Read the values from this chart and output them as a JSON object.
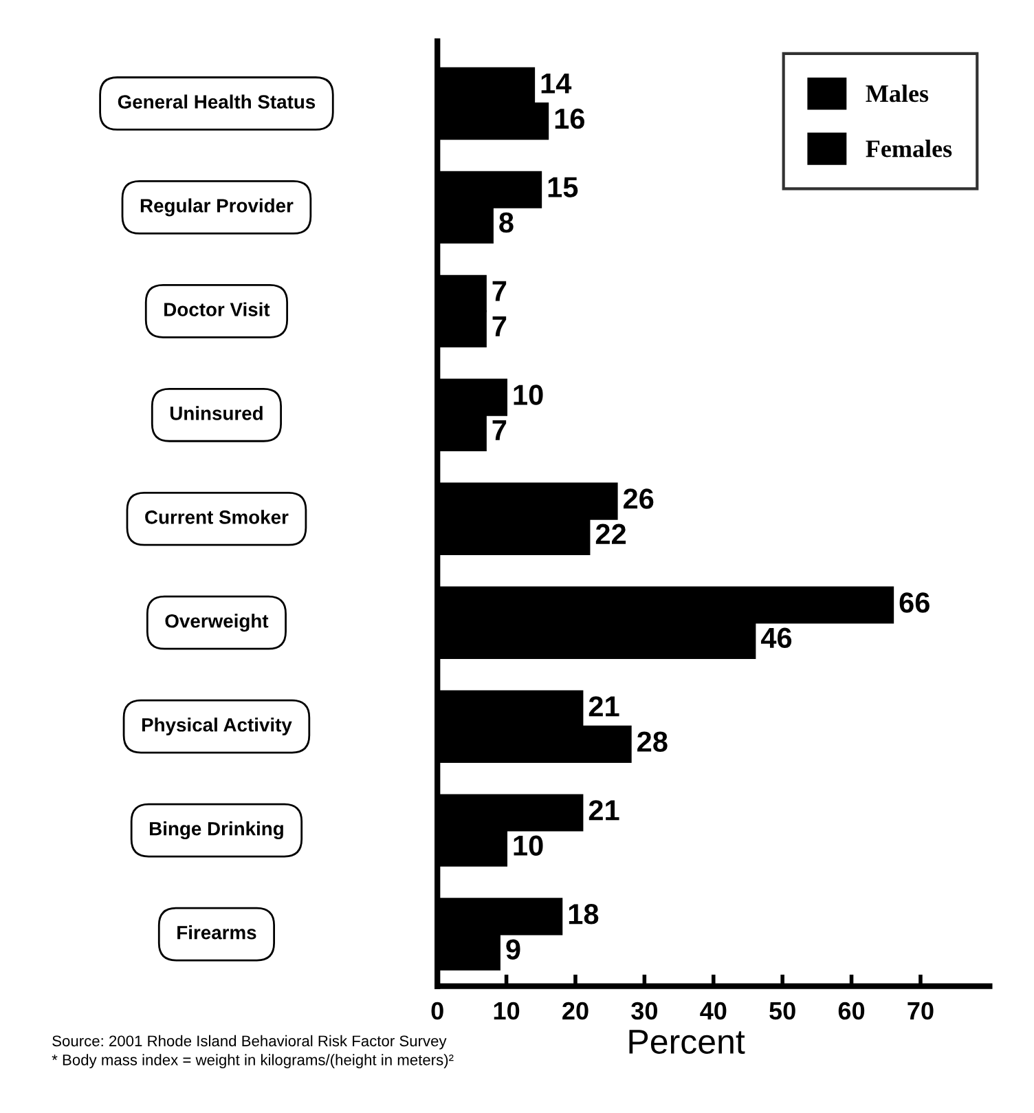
{
  "chart_data": {
    "type": "bar",
    "orientation": "horizontal",
    "categories": [
      "General Health Status",
      "Regular Provider",
      "Doctor Visit",
      "Uninsured",
      "Current Smoker",
      "Overweight",
      "Physical Activity",
      "Binge Drinking",
      "Firearms"
    ],
    "series": [
      {
        "name": "Males",
        "color": "#000000",
        "values": [
          14,
          15,
          7,
          10,
          26,
          66,
          21,
          21,
          18
        ]
      },
      {
        "name": "Females",
        "color": "#000000",
        "values": [
          16,
          8,
          7,
          7,
          22,
          46,
          28,
          10,
          9
        ]
      }
    ],
    "xlabel": "Percent",
    "xlim": [
      0,
      80
    ],
    "xticks": [
      0,
      10,
      20,
      30,
      40,
      50,
      60,
      70
    ],
    "data_labels": true,
    "legend": "top right",
    "grid": false,
    "annotations": [
      "Source: 2001 Rhode Island Behavioral Risk Factor Survey",
      "* Body mass index = weight in kilograms/(height in meters)²"
    ]
  }
}
